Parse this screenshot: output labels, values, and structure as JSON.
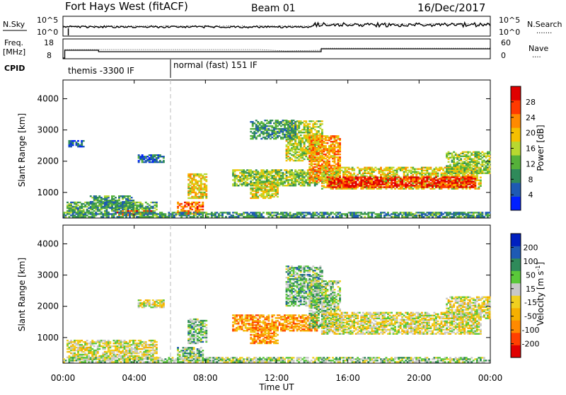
{
  "header": {
    "title": "Fort Hays West (fitACF)",
    "beam": "Beam 01",
    "date": "16/Dec/2017"
  },
  "noise_panel": {
    "left_label": "N.Sky",
    "left_ticks": [
      "10^5",
      "10^0"
    ],
    "right_ticks": [
      "10^5",
      "10^0"
    ],
    "right_label": "N.Search",
    "right_label_line": "·······"
  },
  "freq_panel": {
    "left_label_top": "Freq.",
    "left_label_unit": "[MHz]",
    "left_ticks": [
      "18",
      "8"
    ],
    "right_ticks": [
      "60",
      "0"
    ],
    "right_label": "Nave",
    "right_label_line": "····"
  },
  "cpid_panel": {
    "label": "CPID",
    "modes": [
      {
        "name": "themis -3300 IF",
        "start_hour": 0
      },
      {
        "name": "normal (fast) 151 IF",
        "start_hour": 6
      }
    ]
  },
  "x_axis": {
    "label": "Time UT",
    "tick_labels": [
      "00:00",
      "04:00",
      "08:00",
      "12:00",
      "16:00",
      "20:00",
      "00:00"
    ],
    "range": [
      0,
      24
    ]
  },
  "chart_data": [
    {
      "type": "heatmap",
      "title": "",
      "xlabel": "Time UT",
      "ylabel": "Slant Range [km]",
      "xlim": [
        0,
        24
      ],
      "ylim": [
        180,
        4600
      ],
      "y_tick_labels": [
        "1000",
        "2000",
        "3000",
        "4000"
      ],
      "y_ticks": [
        1000,
        2000,
        3000,
        4000
      ],
      "colorbar": {
        "label": "Power [dB]",
        "tick_labels": [
          "4",
          "8",
          "12",
          "16",
          "20",
          "24",
          "28"
        ],
        "range": [
          0,
          32
        ],
        "colors": [
          "#0020ff",
          "#1e5ab4",
          "#2f8a5a",
          "#55b13a",
          "#b8d830",
          "#f5c000",
          "#ff8a00",
          "#ff3a00",
          "#e00000"
        ]
      },
      "regions": [
        {
          "t0": 0.2,
          "t1": 5.2,
          "r0": 300,
          "r1": 700,
          "level": 0.35
        },
        {
          "t0": 1.5,
          "t1": 4.0,
          "r0": 500,
          "r1": 900,
          "level": 0.3
        },
        {
          "t0": 3.0,
          "t1": 5.0,
          "r0": 250,
          "r1": 420,
          "level": 0.85
        },
        {
          "t0": 4.2,
          "t1": 5.6,
          "r0": 1950,
          "r1": 2200,
          "level": 0.2
        },
        {
          "t0": 0.3,
          "t1": 1.1,
          "r0": 2450,
          "r1": 2650,
          "level": 0.15
        },
        {
          "t0": 6.4,
          "t1": 7.8,
          "r0": 300,
          "r1": 700,
          "level": 0.75
        },
        {
          "t0": 7.0,
          "t1": 8.0,
          "r0": 800,
          "r1": 1600,
          "level": 0.6
        },
        {
          "t0": 9.5,
          "t1": 14.2,
          "r0": 1200,
          "r1": 1700,
          "level": 0.45
        },
        {
          "t0": 10.5,
          "t1": 12.0,
          "r0": 800,
          "r1": 1300,
          "level": 0.55
        },
        {
          "t0": 12.5,
          "t1": 14.5,
          "r0": 2000,
          "r1": 3300,
          "level": 0.5
        },
        {
          "t0": 13.8,
          "t1": 15.5,
          "r0": 1300,
          "r1": 2800,
          "level": 0.7
        },
        {
          "t0": 14.5,
          "t1": 23.5,
          "r0": 1100,
          "r1": 1800,
          "level": 0.55
        },
        {
          "t0": 14.8,
          "t1": 23.2,
          "r0": 1150,
          "r1": 1500,
          "level": 0.9
        },
        {
          "t0": 0.0,
          "t1": 24.0,
          "r0": 200,
          "r1": 350,
          "level": 0.3
        },
        {
          "t0": 21.5,
          "t1": 24.0,
          "r0": 1600,
          "r1": 2300,
          "level": 0.45
        },
        {
          "t0": 10.5,
          "t1": 13.0,
          "r0": 2700,
          "r1": 3300,
          "level": 0.3
        }
      ]
    },
    {
      "type": "heatmap",
      "title": "",
      "xlabel": "Time UT",
      "ylabel": "Slant Range [km]",
      "xlim": [
        0,
        24
      ],
      "ylim": [
        180,
        4600
      ],
      "y_tick_labels": [
        "1000",
        "2000",
        "3000",
        "4000"
      ],
      "y_ticks": [
        1000,
        2000,
        3000,
        4000
      ],
      "colorbar": {
        "label": "Velocity [m s",
        "label_sup": "-1",
        "label_end": "]",
        "tick_labels": [
          "-200",
          "-100",
          "-50",
          "-15",
          "15",
          "50",
          "100",
          "200"
        ],
        "range": [
          -250,
          250
        ],
        "colors": [
          "#e00000",
          "#ff4000",
          "#ff8a00",
          "#f5b000",
          "#f0d020",
          "#c8c8c8",
          "#5ac83a",
          "#2f8a5a",
          "#1e5ab4",
          "#0020c0"
        ]
      },
      "regions": [
        {
          "t0": 0.2,
          "t1": 5.2,
          "r0": 300,
          "r1": 900,
          "level": 0.5
        },
        {
          "t0": 4.2,
          "t1": 5.6,
          "r0": 1950,
          "r1": 2200,
          "level": 0.5
        },
        {
          "t0": 6.4,
          "t1": 7.8,
          "r0": 250,
          "r1": 700,
          "level": 0.65
        },
        {
          "t0": 7.0,
          "t1": 8.0,
          "r0": 800,
          "r1": 1600,
          "level": 0.65
        },
        {
          "t0": 9.5,
          "t1": 14.2,
          "r0": 1200,
          "r1": 1700,
          "level": 0.3
        },
        {
          "t0": 10.5,
          "t1": 12.0,
          "r0": 800,
          "r1": 1300,
          "level": 0.3
        },
        {
          "t0": 12.5,
          "t1": 14.5,
          "r0": 2000,
          "r1": 3300,
          "level": 0.65
        },
        {
          "t0": 13.8,
          "t1": 15.5,
          "r0": 1300,
          "r1": 2800,
          "level": 0.62
        },
        {
          "t0": 14.5,
          "t1": 23.5,
          "r0": 1100,
          "r1": 1800,
          "level": 0.5
        },
        {
          "t0": 21.5,
          "t1": 24.0,
          "r0": 1600,
          "r1": 2300,
          "level": 0.5
        },
        {
          "t0": 0.0,
          "t1": 24.0,
          "r0": 200,
          "r1": 350,
          "level": 0.6
        }
      ]
    }
  ]
}
